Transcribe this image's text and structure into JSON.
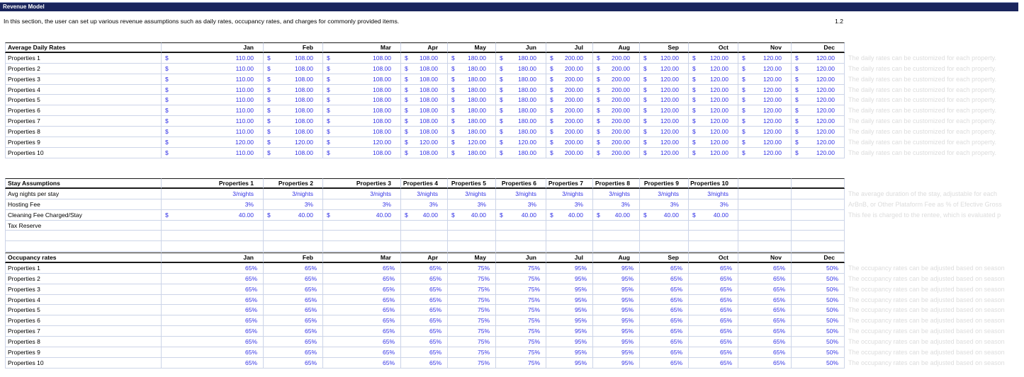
{
  "title_bar": {
    "title": "Revenue Model"
  },
  "intro": {
    "text": "In this section, the user can set up various revenue assumptions such as daily rates, occupancy rates, and charges for commonly provided items.",
    "section_number": "1.2"
  },
  "months": [
    "Jan",
    "Feb",
    "Mar",
    "Apr",
    "May",
    "Jun",
    "Jul",
    "Aug",
    "Sep",
    "Oct",
    "Nov",
    "Dec"
  ],
  "colors": {
    "title_bar_bg": "#19245c",
    "input_value_blue": "#3333e6",
    "gridline": "#ccd4e8",
    "note_gray": "#dcdcdc"
  },
  "daily_rates": {
    "section_title": "Average Daily Rates",
    "currency_symbol": "$",
    "row_note": "The daily rates can be customized for each property.",
    "rows": [
      {
        "label": "Properties 1",
        "values": [
          "110.00",
          "108.00",
          "108.00",
          "108.00",
          "180.00",
          "180.00",
          "200.00",
          "200.00",
          "120.00",
          "120.00",
          "120.00",
          "120.00"
        ]
      },
      {
        "label": "Properties 2",
        "values": [
          "110.00",
          "108.00",
          "108.00",
          "108.00",
          "180.00",
          "180.00",
          "200.00",
          "200.00",
          "120.00",
          "120.00",
          "120.00",
          "120.00"
        ]
      },
      {
        "label": "Properties 3",
        "values": [
          "110.00",
          "108.00",
          "108.00",
          "108.00",
          "180.00",
          "180.00",
          "200.00",
          "200.00",
          "120.00",
          "120.00",
          "120.00",
          "120.00"
        ]
      },
      {
        "label": "Properties 4",
        "values": [
          "110.00",
          "108.00",
          "108.00",
          "108.00",
          "180.00",
          "180.00",
          "200.00",
          "200.00",
          "120.00",
          "120.00",
          "120.00",
          "120.00"
        ]
      },
      {
        "label": "Properties 5",
        "values": [
          "110.00",
          "108.00",
          "108.00",
          "108.00",
          "180.00",
          "180.00",
          "200.00",
          "200.00",
          "120.00",
          "120.00",
          "120.00",
          "120.00"
        ]
      },
      {
        "label": "Properties 6",
        "values": [
          "110.00",
          "108.00",
          "108.00",
          "108.00",
          "180.00",
          "180.00",
          "200.00",
          "200.00",
          "120.00",
          "120.00",
          "120.00",
          "120.00"
        ]
      },
      {
        "label": "Properties 7",
        "values": [
          "110.00",
          "108.00",
          "108.00",
          "108.00",
          "180.00",
          "180.00",
          "200.00",
          "200.00",
          "120.00",
          "120.00",
          "120.00",
          "120.00"
        ]
      },
      {
        "label": "Properties 8",
        "values": [
          "110.00",
          "108.00",
          "108.00",
          "108.00",
          "180.00",
          "180.00",
          "200.00",
          "200.00",
          "120.00",
          "120.00",
          "120.00",
          "120.00"
        ]
      },
      {
        "label": "Properties 9",
        "values": [
          "120.00",
          "120.00",
          "120.00",
          "120.00",
          "120.00",
          "120.00",
          "200.00",
          "200.00",
          "120.00",
          "120.00",
          "120.00",
          "120.00"
        ]
      },
      {
        "label": "Properties 10",
        "values": [
          "110.00",
          "108.00",
          "108.00",
          "108.00",
          "180.00",
          "180.00",
          "200.00",
          "200.00",
          "120.00",
          "120.00",
          "120.00",
          "120.00"
        ]
      }
    ]
  },
  "stay_assumptions": {
    "section_title": "Stay Assumptions",
    "column_headers": [
      "Properties 1",
      "Properties 2",
      "Properties 3",
      "Properties 4",
      "Properties 5",
      "Properties 6",
      "Properties 7",
      "Properties 8",
      "Properties 9",
      "Properties 10"
    ],
    "currency_symbol": "$",
    "empty_trailing_rows": 2,
    "rows": [
      {
        "label": "Avg nights per stay",
        "type": "text",
        "values": [
          "3/nights",
          "3/nights",
          "3/nights",
          "3/nights",
          "3/nights",
          "3/nights",
          "3/nights",
          "3/nights",
          "3/nights",
          "3/nights"
        ],
        "note": "The average duration of the stay, adjustable for each"
      },
      {
        "label": "Hosting Fee",
        "type": "text",
        "values": [
          "3%",
          "3%",
          "3%",
          "3%",
          "3%",
          "3%",
          "3%",
          "3%",
          "3%",
          "3%"
        ],
        "note": "ArBnB, or Other Plataform Fee as % of Efective Gross"
      },
      {
        "label": "Cleaning Fee Charged/Stay",
        "type": "money",
        "values": [
          "40.00",
          "40.00",
          "40.00",
          "40.00",
          "40.00",
          "40.00",
          "40.00",
          "40.00",
          "40.00",
          "40.00"
        ],
        "note": "This fee is charged to the rentee, which is evaluated p"
      },
      {
        "label": "Tax Reserve",
        "type": "empty",
        "values": [],
        "note": ""
      }
    ]
  },
  "occupancy": {
    "section_title": "Occupancy rates",
    "row_note": "The occupancy rates can be adjusted based on season",
    "rows": [
      {
        "label": "Properties 1",
        "values": [
          "65%",
          "65%",
          "65%",
          "65%",
          "75%",
          "75%",
          "95%",
          "95%",
          "65%",
          "65%",
          "65%",
          "50%"
        ]
      },
      {
        "label": "Properties 2",
        "values": [
          "65%",
          "65%",
          "65%",
          "65%",
          "75%",
          "75%",
          "95%",
          "95%",
          "65%",
          "65%",
          "65%",
          "50%"
        ]
      },
      {
        "label": "Properties 3",
        "values": [
          "65%",
          "65%",
          "65%",
          "65%",
          "75%",
          "75%",
          "95%",
          "95%",
          "65%",
          "65%",
          "65%",
          "50%"
        ]
      },
      {
        "label": "Properties 4",
        "values": [
          "65%",
          "65%",
          "65%",
          "65%",
          "75%",
          "75%",
          "95%",
          "95%",
          "65%",
          "65%",
          "65%",
          "50%"
        ]
      },
      {
        "label": "Properties 5",
        "values": [
          "65%",
          "65%",
          "65%",
          "65%",
          "75%",
          "75%",
          "95%",
          "95%",
          "65%",
          "65%",
          "65%",
          "50%"
        ]
      },
      {
        "label": "Properties 6",
        "values": [
          "65%",
          "65%",
          "65%",
          "65%",
          "75%",
          "75%",
          "95%",
          "95%",
          "65%",
          "65%",
          "65%",
          "50%"
        ]
      },
      {
        "label": "Properties 7",
        "values": [
          "65%",
          "65%",
          "65%",
          "65%",
          "75%",
          "75%",
          "95%",
          "95%",
          "65%",
          "65%",
          "65%",
          "50%"
        ]
      },
      {
        "label": "Properties 8",
        "values": [
          "65%",
          "65%",
          "65%",
          "65%",
          "75%",
          "75%",
          "95%",
          "95%",
          "65%",
          "65%",
          "65%",
          "50%"
        ]
      },
      {
        "label": "Properties 9",
        "values": [
          "65%",
          "65%",
          "65%",
          "65%",
          "75%",
          "75%",
          "95%",
          "95%",
          "65%",
          "65%",
          "65%",
          "50%"
        ]
      },
      {
        "label": "Properties 10",
        "values": [
          "65%",
          "65%",
          "65%",
          "65%",
          "75%",
          "75%",
          "95%",
          "95%",
          "65%",
          "65%",
          "65%",
          "50%"
        ]
      }
    ]
  }
}
